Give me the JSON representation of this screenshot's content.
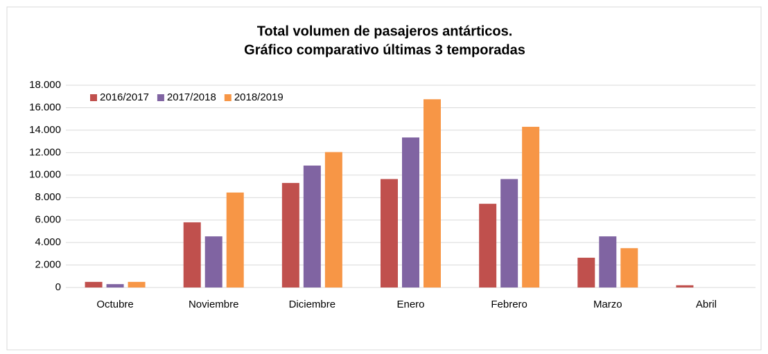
{
  "chart_data": {
    "type": "bar",
    "title": [
      "Total volumen de pasajeros antárticos.",
      "Gráfico comparativo últimas 3 temporadas"
    ],
    "categories": [
      "Octubre",
      "Noviembre",
      "Diciembre",
      "Enero",
      "Febrero",
      "Marzo",
      "Abril"
    ],
    "series": [
      {
        "name": "2016/2017",
        "color": "#c0504d",
        "values": [
          500,
          5800,
          9300,
          9650,
          7450,
          2650,
          200
        ]
      },
      {
        "name": "2017/2018",
        "color": "#8064a2",
        "values": [
          300,
          4550,
          10850,
          13350,
          9650,
          4550,
          0
        ]
      },
      {
        "name": "2018/2019",
        "color": "#f79646",
        "values": [
          500,
          8450,
          12050,
          16750,
          14300,
          3500,
          0
        ]
      }
    ],
    "ylim": [
      0,
      18000
    ],
    "yticks": [
      0,
      {
        "value": 2000,
        "label": "2.000"
      },
      {
        "value": 4000,
        "label": "4.000"
      },
      {
        "value": 6000,
        "label": "6.000"
      },
      {
        "value": 8000,
        "label": "8.000"
      },
      {
        "value": 10000,
        "label": "10.000"
      },
      {
        "value": 12000,
        "label": "12.000"
      },
      {
        "value": 14000,
        "label": "14.000"
      },
      {
        "value": 16000,
        "label": "16.000"
      },
      {
        "value": 18000,
        "label": "18.000"
      }
    ],
    "grid": true,
    "legend": "top-left"
  }
}
